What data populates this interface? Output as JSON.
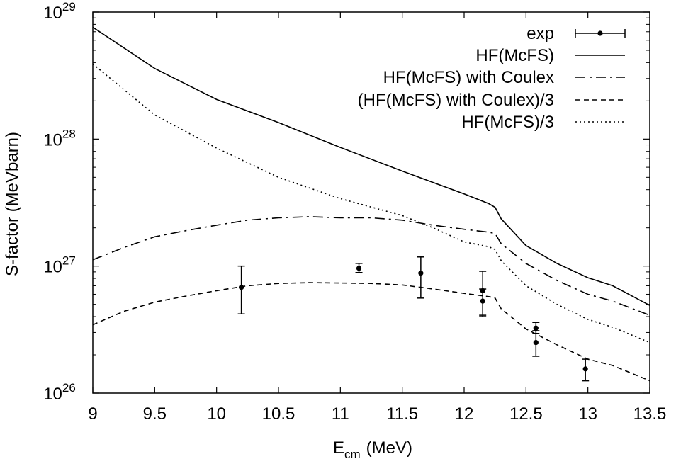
{
  "chart_data": {
    "type": "line",
    "title": "",
    "xlabel": "E",
    "xlabel_sub": "cm",
    "xlabel_unit": "(MeV)",
    "ylabel": "S-factor (MeVbarn)",
    "xlim": [
      9,
      13.5
    ],
    "ylim": [
      1e+26,
      1e+29
    ],
    "yscale": "log",
    "grid": false,
    "legend_position": "top-right",
    "x_ticks": [
      "9",
      "9.5",
      "10",
      "10.5",
      "11",
      "11.5",
      "12",
      "12.5",
      "13",
      "13.5"
    ],
    "y_ticks": [
      {
        "base": "10",
        "exp": "26",
        "value": 1e+26
      },
      {
        "base": "10",
        "exp": "27",
        "value": 1e+27
      },
      {
        "base": "10",
        "exp": "28",
        "value": 1e+28
      },
      {
        "base": "10",
        "exp": "29",
        "value": 1e+29
      }
    ],
    "series": [
      {
        "name": "exp",
        "kind": "points",
        "color": "#000000",
        "points": [
          {
            "x": 10.2,
            "y": 6.8e+26,
            "ylow": 4.2e+26,
            "yhigh": 1e+27
          },
          {
            "x": 11.15,
            "y": 9.6e+26,
            "ylow": 8.9e+26,
            "yhigh": 1.05e+27
          },
          {
            "x": 11.65,
            "y": 8.8e+26,
            "ylow": 5.6e+26,
            "yhigh": 1.18e+27
          },
          {
            "x": 12.15,
            "y": 6.4e+26,
            "ylow": 4.1e+26,
            "yhigh": 9.1e+26
          },
          {
            "x": 12.15,
            "y": 5.3e+26,
            "ylow": 4e+26,
            "yhigh": 6.6e+26
          },
          {
            "x": 12.58,
            "y": 3.25e+26,
            "ylow": 2.95e+26,
            "yhigh": 3.6e+26
          },
          {
            "x": 12.58,
            "y": 2.5e+26,
            "ylow": 1.95e+26,
            "yhigh": 3.1e+26
          },
          {
            "x": 12.98,
            "y": 1.55e+26,
            "ylow": 1.25e+26,
            "yhigh": 1.85e+26
          }
        ]
      },
      {
        "name": "HF(McFS)",
        "kind": "line",
        "dash": "",
        "color": "#000000",
        "x": [
          9.0,
          9.5,
          10.0,
          10.5,
          11.0,
          11.5,
          12.0,
          12.2,
          12.25,
          12.3,
          12.5,
          12.75,
          13.0,
          13.2,
          13.5
        ],
        "y": [
          7.6e+28,
          3.6e+28,
          2.05e+28,
          1.35e+28,
          8.6e+27,
          5.6e+27,
          3.7e+27,
          3.1e+27,
          2.9e+27,
          2.35e+27,
          1.45e+27,
          1.05e+27,
          8.1e+26,
          7e+26,
          4.9e+26
        ]
      },
      {
        "name": "HF(McFS) with Coulex",
        "kind": "line",
        "dash": "14 6 3 6",
        "color": "#000000",
        "x": [
          9.0,
          9.25,
          9.5,
          9.75,
          10.0,
          10.25,
          10.5,
          10.75,
          11.0,
          11.25,
          11.5,
          11.75,
          12.0,
          12.2,
          12.25,
          12.3,
          12.5,
          12.75,
          13.0,
          13.2,
          13.5
        ],
        "y": [
          1.12e+27,
          1.4e+27,
          1.7e+27,
          1.9e+27,
          2.1e+27,
          2.3e+27,
          2.4e+27,
          2.45e+27,
          2.4e+27,
          2.4e+27,
          2.3e+27,
          2.1e+27,
          1.95e+27,
          1.85e+27,
          1.8e+27,
          1.5e+27,
          1.05e+27,
          7.7e+26,
          6e+26,
          5.3e+26,
          4.1e+26
        ]
      },
      {
        "name": "(HF(McFS) with Coulex)/3",
        "kind": "line",
        "dash": "7 5",
        "color": "#000000",
        "x": [
          9.0,
          9.25,
          9.5,
          9.75,
          10.0,
          10.25,
          10.5,
          10.75,
          11.0,
          11.25,
          11.5,
          11.75,
          12.0,
          12.2,
          12.25,
          12.3,
          12.5,
          12.75,
          13.0,
          13.2,
          13.5
        ],
        "y": [
          3.45e+26,
          4.4e+26,
          5.2e+26,
          5.8e+26,
          6.4e+26,
          7e+26,
          7.3e+26,
          7.4e+26,
          7.35e+26,
          7.3e+26,
          7.1e+26,
          6.6e+26,
          6.1e+26,
          5.75e+26,
          5.6e+26,
          4.6e+26,
          3.2e+26,
          2.4e+26,
          1.85e+26,
          1.65e+26,
          1.25e+26
        ]
      },
      {
        "name": "HF(McFS)/3",
        "kind": "line",
        "dash": "2 4",
        "color": "#000000",
        "x": [
          9.0,
          9.5,
          10.0,
          10.5,
          11.0,
          11.5,
          11.75,
          12.0,
          12.2,
          12.25,
          12.3,
          12.5,
          12.75,
          13.0,
          13.2,
          13.5
        ],
        "y": [
          3.9e+28,
          1.55e+28,
          8.5e+27,
          5e+27,
          3.4e+27,
          2.5e+27,
          2e+27,
          1.55e+27,
          1.42e+27,
          1.35e+27,
          1.1e+27,
          7e+26,
          5e+26,
          3.8e+26,
          3.3e+26,
          2.5e+26
        ]
      }
    ]
  }
}
